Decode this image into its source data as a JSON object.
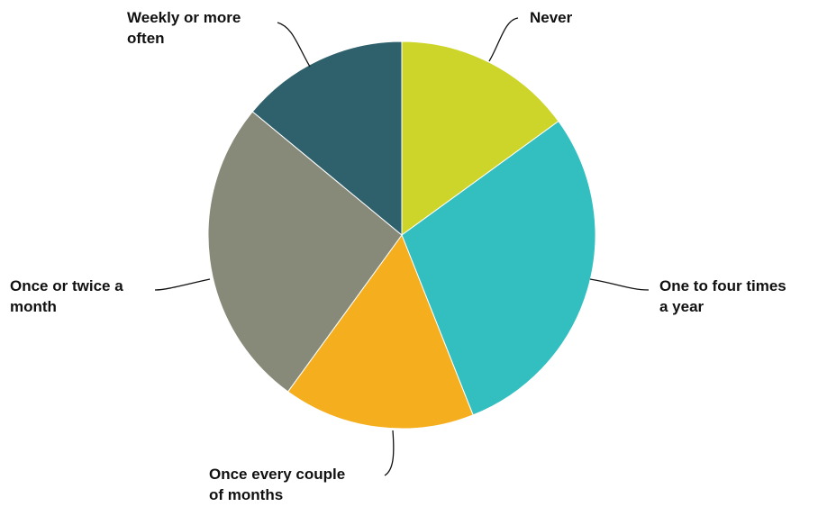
{
  "chart_data": {
    "type": "pie",
    "start_angle": "12 o'clock, clockwise",
    "slices": [
      {
        "label": [
          "Never"
        ],
        "value": 15,
        "color": "#cdd52a"
      },
      {
        "label": [
          "One to four times",
          "a year"
        ],
        "value": 29,
        "color": "#33bec0"
      },
      {
        "label": [
          "Once every couple",
          "of months"
        ],
        "value": 16,
        "color": "#f5ae1e"
      },
      {
        "label": [
          "Once or twice a",
          "month"
        ],
        "value": 26,
        "color": "#888a79"
      },
      {
        "label": [
          "Weekly or more",
          "often"
        ],
        "value": 14,
        "color": "#2f616d"
      }
    ]
  }
}
